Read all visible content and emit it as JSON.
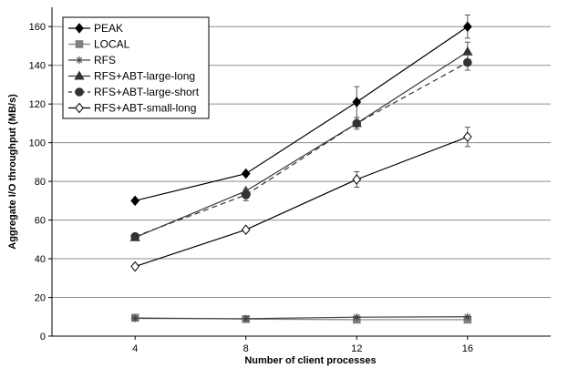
{
  "chart_data": {
    "type": "line",
    "title": "",
    "xlabel": "Number of client processes",
    "ylabel": "Aggregate I/O throughput (MB/s)",
    "x": [
      4,
      8,
      12,
      16
    ],
    "x_ticks": [
      4,
      8,
      12,
      16
    ],
    "xlim": [
      1,
      19
    ],
    "ylim": [
      0,
      170
    ],
    "y_ticks": [
      0,
      20,
      40,
      60,
      80,
      100,
      120,
      140,
      160
    ],
    "grid": "horizontal",
    "legend_position": "top-left",
    "series": [
      {
        "name": "PEAK",
        "marker": "diamond-filled",
        "line": "solid",
        "color": "#000000",
        "values": [
          70,
          84,
          121,
          160
        ],
        "errors": [
          0,
          0,
          8,
          6
        ]
      },
      {
        "name": "LOCAL",
        "marker": "square",
        "line": "solid",
        "color": "#808080",
        "values": [
          9.5,
          8.8,
          8.5,
          8.5
        ],
        "errors": [
          0,
          0,
          0,
          0
        ]
      },
      {
        "name": "RFS",
        "marker": "asterisk",
        "line": "solid",
        "color": "#404040",
        "values": [
          9.2,
          9.0,
          9.8,
          10
        ],
        "errors": [
          0,
          0,
          0,
          0
        ]
      },
      {
        "name": "RFS+ABT-large-long",
        "marker": "triangle",
        "line": "solid",
        "color": "#333333",
        "values": [
          51,
          75,
          110,
          147
        ],
        "errors": [
          0,
          0,
          0,
          5
        ]
      },
      {
        "name": "RFS+ABT-large-short",
        "marker": "circle",
        "line": "dashed",
        "color": "#333333",
        "values": [
          51.5,
          73,
          110,
          141.5
        ],
        "errors": [
          0,
          3,
          3,
          4
        ]
      },
      {
        "name": "RFS+ABT-small-long",
        "marker": "diamond-open",
        "line": "solid",
        "color": "#000000",
        "values": [
          36,
          55,
          81,
          103
        ],
        "errors": [
          0,
          0,
          4,
          5
        ]
      }
    ]
  }
}
